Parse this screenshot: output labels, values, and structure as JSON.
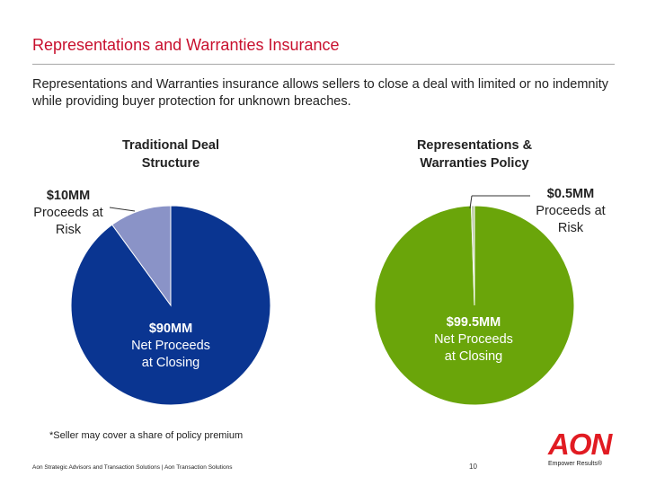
{
  "header": {
    "title": "Representations and Warranties Insurance",
    "intro": "Representations and Warranties insurance allows sellers to close a deal with limited or no indemnity while providing buyer protection for unknown breaches."
  },
  "chart_data": [
    {
      "type": "pie",
      "title_line1": "Traditional Deal",
      "title_line2": "Structure",
      "slices": [
        {
          "amount_label": "$90MM",
          "text_line1": "Net Proceeds",
          "text_line2": "at Closing",
          "value": 90,
          "color": "#0a3591"
        },
        {
          "amount_label": "$10MM",
          "text_line1": "Proceeds at",
          "text_line2": "Risk",
          "value": 10,
          "color": "#8a93c7"
        }
      ]
    },
    {
      "type": "pie",
      "title_line1": "Representations &",
      "title_line2": "Warranties Policy",
      "slices": [
        {
          "amount_label": "$99.5MM",
          "text_line1": "Net Proceeds",
          "text_line2": "at Closing",
          "value": 99.5,
          "color": "#6aa50a"
        },
        {
          "amount_label": "$0.5MM",
          "text_line1": "Proceeds at",
          "text_line2": "Risk",
          "value": 0.5,
          "color": "#b8c7a2"
        }
      ]
    }
  ],
  "footnote": "*Seller may cover a share of policy premium",
  "footer": {
    "text": "Aon Strategic Advisors and Transaction Solutions | Aon Transaction Solutions",
    "page": "10"
  },
  "logo": {
    "word": "AON",
    "tagline": "Empower Results®",
    "color": "#e11b22"
  }
}
